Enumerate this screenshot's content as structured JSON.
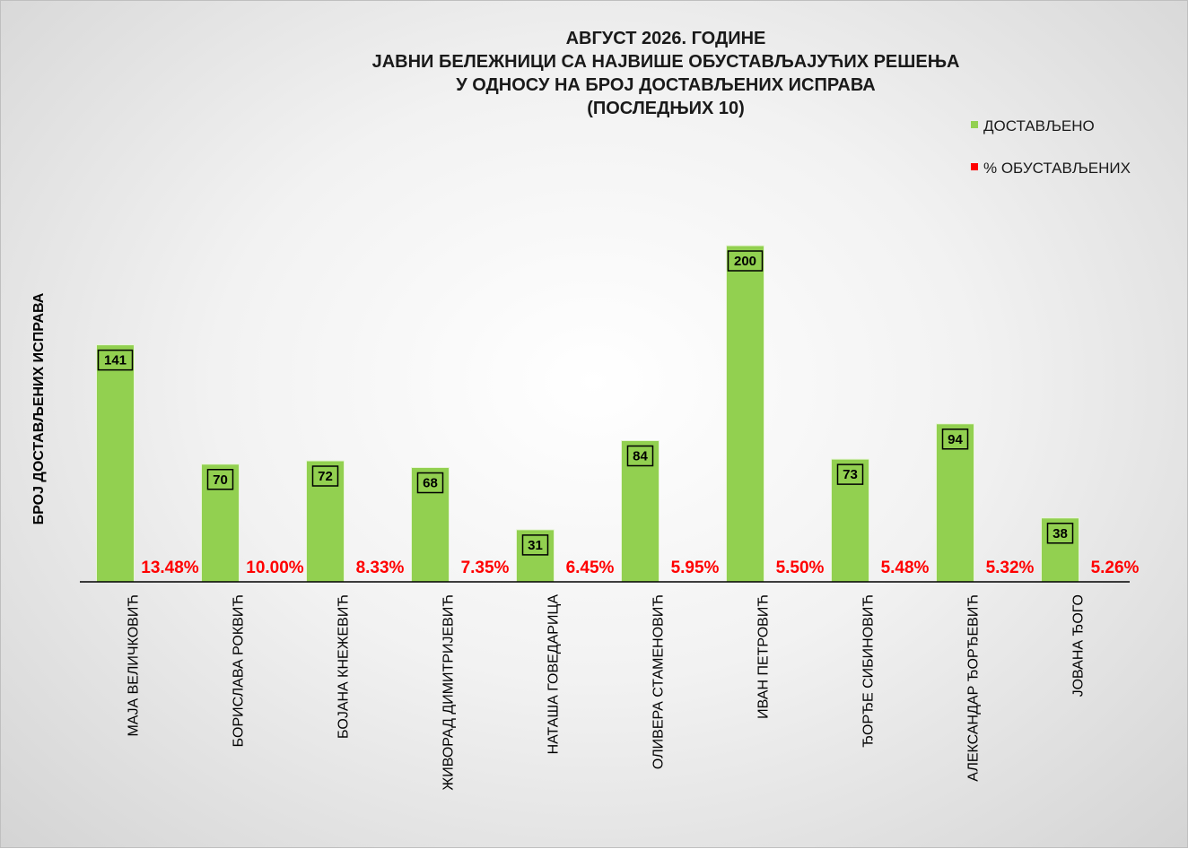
{
  "chart_data": {
    "type": "bar",
    "title_lines": [
      "АВГУСТ 2026. ГОДИНЕ",
      "ЈАВНИ БЕЛЕЖНИЦИ СА НАЈВИШЕ ОБУСТАВЉАЈУЋИХ РЕШЕЊА",
      "У ОДНОСУ НА БРОЈ ДОСТАВЉЕНИХ ИСПРАВА",
      "(ПОСЛЕДЊИХ 10)"
    ],
    "ylabel": "БРОЈ ДОСТАВЉЕНИХ  ИСПРАВА",
    "xlabel": "",
    "legend_position": "top-right",
    "grid": false,
    "ylim": [
      0,
      280
    ],
    "categories": [
      "МАЈА ВЕЛИЧКОВИЋ",
      "БОРИСЛАВА РОКВИЋ",
      "БОЈАНА КНЕЖЕВИЋ",
      "ЖИВОРАД ДИМИТРИЈЕВИЋ",
      "НАТАША ГОВЕДАРИЦА",
      "ОЛИВЕРА СТАМЕНОВИЋ",
      "ИВАН ПЕТРОВИЋ",
      "ЂОРЂЕ СИБИНОВИЋ",
      "АЛЕКСАНДАР ЂОРЂЕВИЋ",
      "ЈОВАНА ЂОГО"
    ],
    "series": [
      {
        "name": "ДОСТАВЉЕНО",
        "color": "#92d050",
        "values": [
          141,
          70,
          72,
          68,
          31,
          84,
          200,
          73,
          94,
          38
        ],
        "labels": [
          "141",
          "70",
          "72",
          "68",
          "31",
          "84",
          "200",
          "73",
          "94",
          "38"
        ]
      },
      {
        "name": "% ОБУСТАВЉЕНИХ",
        "color": "#ff0000",
        "values": [
          13.48,
          10.0,
          8.33,
          7.35,
          6.45,
          5.95,
          5.5,
          5.48,
          5.32,
          5.26
        ],
        "labels": [
          "13.48%",
          "10.00%",
          "8.33%",
          "7.35%",
          "6.45%",
          "5.95%",
          "5.50%",
          "5.48%",
          "5.32%",
          "5.26%"
        ]
      }
    ]
  }
}
